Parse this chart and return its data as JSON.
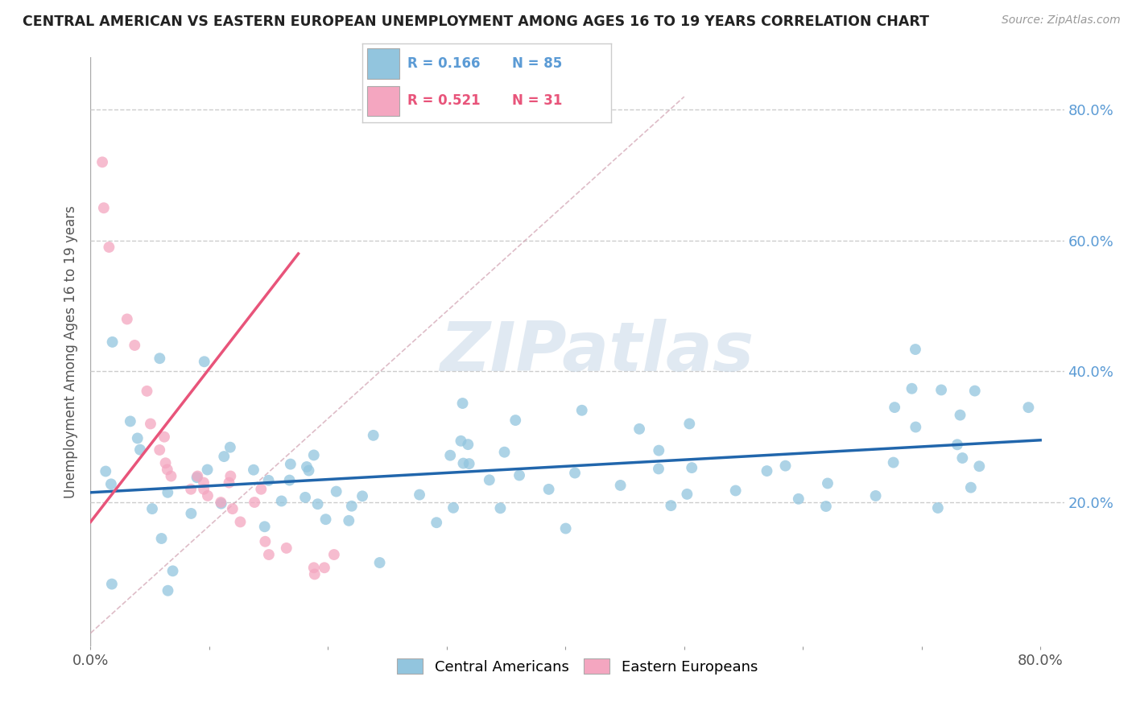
{
  "title": "CENTRAL AMERICAN VS EASTERN EUROPEAN UNEMPLOYMENT AMONG AGES 16 TO 19 YEARS CORRELATION CHART",
  "source": "Source: ZipAtlas.com",
  "ylabel": "Unemployment Among Ages 16 to 19 years",
  "xlim": [
    0.0,
    0.82
  ],
  "ylim": [
    -0.02,
    0.88
  ],
  "xtick_positions": [
    0.0,
    0.1,
    0.2,
    0.3,
    0.4,
    0.5,
    0.6,
    0.7,
    0.8
  ],
  "xticklabels": [
    "0.0%",
    "",
    "",
    "",
    "",
    "",
    "",
    "",
    "80.0%"
  ],
  "ytick_positions": [
    0.2,
    0.4,
    0.6,
    0.8
  ],
  "ytick_labels": [
    "20.0%",
    "40.0%",
    "60.0%",
    "80.0%"
  ],
  "grid_color": "#cccccc",
  "bg_color": "#ffffff",
  "blue_dot_color": "#92c5de",
  "pink_dot_color": "#f4a6c0",
  "blue_line_color": "#2166ac",
  "pink_line_color": "#e8547a",
  "dash_line_color": "#d0a0b0",
  "legend_R_blue": "R = 0.166",
  "legend_N_blue": "N = 85",
  "legend_R_pink": "R = 0.521",
  "legend_N_pink": "N = 31",
  "legend_label_blue": "Central Americans",
  "legend_label_pink": "Eastern Europeans",
  "watermark": "ZIPatlas",
  "blue_line_x0": 0.0,
  "blue_line_x1": 0.8,
  "blue_line_y0": 0.215,
  "blue_line_y1": 0.295,
  "pink_line_x0": 0.0,
  "pink_line_x1": 0.175,
  "pink_line_y0": 0.17,
  "pink_line_y1": 0.58,
  "dash_line_x0": 0.0,
  "dash_line_x1": 0.5,
  "dash_line_y0": 0.0,
  "dash_line_y1": 0.82
}
